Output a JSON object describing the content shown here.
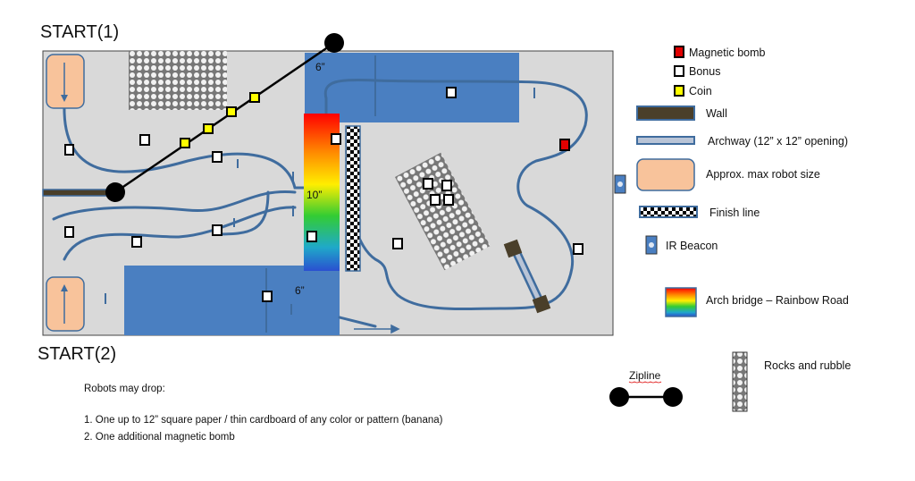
{
  "labels": {
    "start1": "START(1)",
    "start2": "START(2)",
    "dim_top": "6”",
    "dim_bottom": "6”",
    "dim_bridge": "10”"
  },
  "legend": {
    "magnetic_bomb": "Magnetic bomb",
    "bonus": "Bonus",
    "coin": "Coin",
    "wall": "Wall",
    "archway": "Archway (12” x 12” opening)",
    "robot_size": "Approx. max robot size",
    "finish_line": "Finish line",
    "ir_beacon": "IR Beacon",
    "arch_bridge": "Arch bridge – Rainbow Road",
    "zipline": "Zipline",
    "rocks": "Rocks and rubble"
  },
  "notes": {
    "heading": "Robots may drop:",
    "item1": "1.   One up to 12” square paper / thin cardboard of any color or pattern (banana)",
    "item2": "2.   One additional magnetic bomb"
  },
  "colors": {
    "field": "#d9d9d9",
    "blue_zone": "#4a7fc1",
    "line": "#3f6c9e",
    "robot": "#f8c39b",
    "bomb": "#e00000",
    "coin": "#ffff00",
    "wall": "#4a3f2a"
  }
}
